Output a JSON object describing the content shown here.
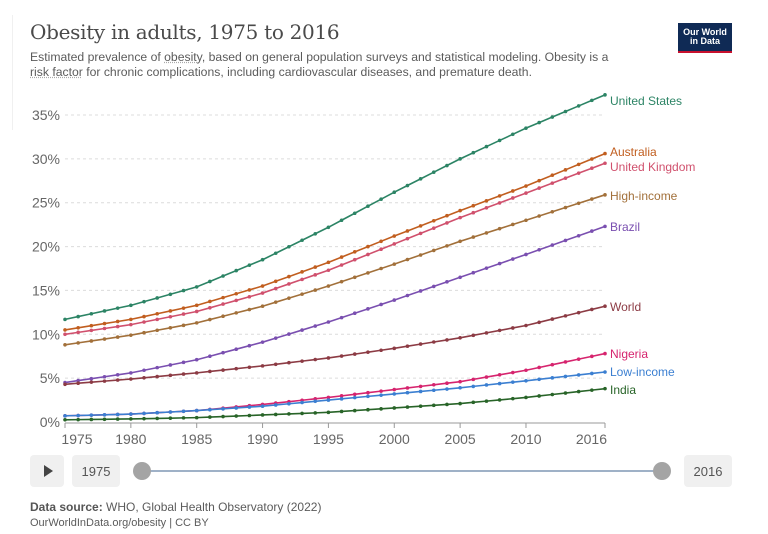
{
  "header": {
    "title": "Obesity in adults, 1975 to 2016",
    "subtitle_parts": [
      "Estimated prevalence of ",
      "obesity",
      ", based on general population surveys and statistical modeling. Obesity is a ",
      "risk factor",
      " for chronic complications, including cardiovascular diseases, and premature death."
    ],
    "logo_line1": "Our World",
    "logo_line2": "in Data"
  },
  "controls": {
    "play_icon": "play-icon",
    "start_year": "1975",
    "end_year": "2016",
    "range_start": 1975,
    "range_end": 2016
  },
  "footer": {
    "source_label": "Data source:",
    "source_text": " WHO, Global Health Observatory (2022)",
    "url_text": "OurWorldInData.org/obesity | CC BY"
  },
  "chart_data": {
    "type": "line",
    "title": "Obesity in adults, 1975 to 2016",
    "xlabel": "",
    "ylabel": "",
    "x_ticks": [
      1975,
      1980,
      1985,
      1990,
      1995,
      2000,
      2005,
      2010,
      2016
    ],
    "y_ticks": [
      0,
      5,
      10,
      15,
      20,
      25,
      30,
      35
    ],
    "y_tick_labels": [
      "0%",
      "5%",
      "10%",
      "15%",
      "20%",
      "25%",
      "30%",
      "35%"
    ],
    "xlim": [
      1975,
      2016
    ],
    "ylim": [
      0,
      35
    ],
    "grid": "horizontal-dotted",
    "legend": "right-end-labels",
    "series": [
      {
        "name": "United States",
        "color": "#2c8465",
        "keyframes": {
          "1975": 11.7,
          "1980": 13.3,
          "1985": 15.4,
          "1990": 18.5,
          "1995": 22.2,
          "2000": 26.2,
          "2005": 30.0,
          "2010": 33.5,
          "2016": 37.3
        }
      },
      {
        "name": "Australia",
        "color": "#c15e1f",
        "keyframes": {
          "1975": 10.5,
          "1980": 11.7,
          "1985": 13.3,
          "1990": 15.5,
          "1995": 18.2,
          "2000": 21.2,
          "2005": 24.1,
          "2010": 26.9,
          "2016": 30.6
        }
      },
      {
        "name": "United Kingdom",
        "color": "#d0506d",
        "keyframes": {
          "1975": 10.0,
          "1980": 11.1,
          "1985": 12.6,
          "1990": 14.7,
          "1995": 17.3,
          "2000": 20.3,
          "2005": 23.3,
          "2010": 26.1,
          "2016": 29.5
        }
      },
      {
        "name": "High-income",
        "color": "#a2703a",
        "keyframes": {
          "1975": 8.8,
          "1980": 9.9,
          "1985": 11.3,
          "1990": 13.2,
          "1995": 15.5,
          "2000": 18.0,
          "2005": 20.6,
          "2010": 23.0,
          "2016": 25.9
        }
      },
      {
        "name": "Brazil",
        "color": "#7a4fb0",
        "keyframes": {
          "1975": 4.5,
          "1980": 5.6,
          "1985": 7.1,
          "1990": 9.1,
          "1995": 11.4,
          "2000": 13.9,
          "2005": 16.5,
          "2010": 19.1,
          "2016": 22.3
        }
      },
      {
        "name": "World",
        "color": "#8c3b44",
        "keyframes": {
          "1975": 4.3,
          "1980": 4.9,
          "1985": 5.6,
          "1990": 6.4,
          "1995": 7.3,
          "2000": 8.4,
          "2005": 9.6,
          "2010": 11.0,
          "2016": 13.2
        }
      },
      {
        "name": "Nigeria",
        "color": "#d6246e",
        "keyframes": {
          "1975": 0.7,
          "1980": 0.9,
          "1985": 1.3,
          "1990": 2.0,
          "1995": 2.8,
          "2000": 3.7,
          "2005": 4.6,
          "2010": 5.9,
          "2016": 7.8
        }
      },
      {
        "name": "Low-income",
        "color": "#3b7fd1",
        "keyframes": {
          "1975": 0.7,
          "1980": 0.9,
          "1985": 1.3,
          "1990": 1.8,
          "1995": 2.5,
          "2000": 3.2,
          "2005": 3.9,
          "2010": 4.7,
          "2016": 5.7
        }
      },
      {
        "name": "India",
        "color": "#286428",
        "keyframes": {
          "1975": 0.25,
          "1980": 0.35,
          "1985": 0.5,
          "1990": 0.8,
          "1995": 1.1,
          "2000": 1.6,
          "2005": 2.1,
          "2010": 2.8,
          "2016": 3.8
        }
      }
    ]
  }
}
